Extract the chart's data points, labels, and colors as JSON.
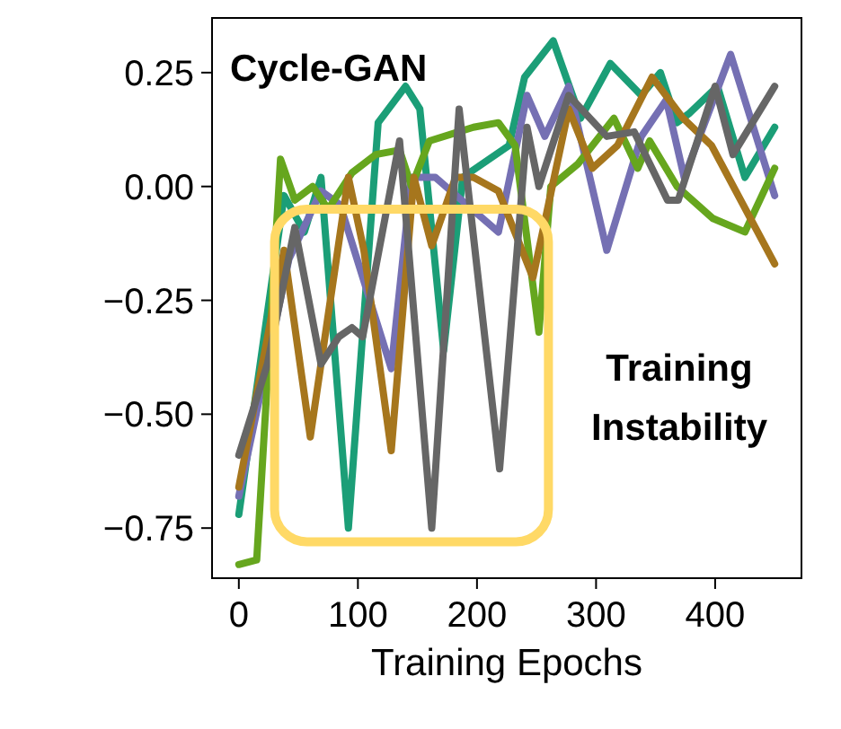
{
  "chart_data": {
    "type": "line",
    "title": "Cycle-GAN",
    "xlabel": "Training Epochs",
    "annotations": [
      "Training Instability"
    ],
    "xlim": [
      -22.5,
      472.5
    ],
    "ylim": [
      -0.86,
      0.37
    ],
    "xticks": [
      0,
      100,
      200,
      300,
      400
    ],
    "yticks": [
      {
        "value": 0.25,
        "label": "0.25"
      },
      {
        "value": 0,
        "label": "0.00"
      },
      {
        "value": -0.25,
        "label": "−0.25"
      },
      {
        "value": -0.5,
        "label": "−0.50"
      },
      {
        "value": -0.75,
        "label": "−0.75"
      }
    ],
    "grid": false,
    "marker": "none",
    "line_style": "solid",
    "series": [
      {
        "color": "#1b9e77",
        "x": [
          0,
          38,
          55,
          69,
          92,
          117,
          140,
          152,
          172,
          188,
          227,
          240,
          264,
          287,
          312,
          338,
          354,
          368,
          378,
          402,
          425,
          450
        ],
        "values": [
          -0.72,
          -0.02,
          -0.1,
          0.02,
          -0.75,
          0.14,
          0.22,
          0.17,
          -0.36,
          0.02,
          0.09,
          0.24,
          0.32,
          0.15,
          0.27,
          0.2,
          0.25,
          0.14,
          0.16,
          0.22,
          0.02,
          0.13
        ]
      },
      {
        "color": "#7570b3",
        "x": [
          0,
          42,
          69,
          85,
          128,
          145,
          165,
          218,
          242,
          257,
          277,
          309,
          338,
          359,
          374,
          413,
          450
        ],
        "values": [
          -0.68,
          -0.16,
          -0.01,
          -0.04,
          -0.4,
          0.02,
          0.02,
          -0.1,
          0.2,
          0.11,
          0.22,
          -0.14,
          0.11,
          0.19,
          0.02,
          0.29,
          -0.02
        ]
      },
      {
        "color": "#66a61e",
        "x": [
          0,
          15,
          35,
          47,
          62,
          75,
          95,
          115,
          135,
          145,
          160,
          197,
          218,
          232,
          252,
          262,
          285,
          315,
          335,
          345,
          368,
          398,
          425,
          450
        ],
        "values": [
          -0.83,
          -0.82,
          0.06,
          -0.03,
          0.0,
          -0.05,
          0.03,
          0.07,
          0.08,
          0.0,
          0.1,
          0.13,
          0.14,
          0.09,
          -0.32,
          0.0,
          0.05,
          0.15,
          0.04,
          0.1,
          0.0,
          -0.07,
          -0.1,
          0.04
        ]
      },
      {
        "color": "#a6761d",
        "x": [
          0,
          38,
          60,
          92,
          105,
          128,
          147,
          162,
          182,
          197,
          218,
          247,
          277,
          297,
          318,
          347,
          373,
          397,
          450
        ],
        "values": [
          -0.66,
          -0.14,
          -0.55,
          0.02,
          -0.14,
          -0.58,
          0.02,
          -0.13,
          0.02,
          0.02,
          -0.01,
          -0.2,
          0.17,
          0.04,
          0.09,
          0.24,
          0.15,
          0.09,
          -0.17
        ]
      },
      {
        "color": "#666666",
        "x": [
          0,
          24,
          47,
          69,
          84,
          95,
          104,
          135,
          162,
          185,
          219,
          242,
          252,
          277,
          309,
          332,
          360,
          369,
          400,
          415,
          450
        ],
        "values": [
          -0.59,
          -0.39,
          -0.09,
          -0.39,
          -0.33,
          -0.31,
          -0.33,
          0.1,
          -0.75,
          0.17,
          -0.62,
          0.13,
          0.0,
          0.2,
          0.11,
          0.12,
          -0.03,
          -0.03,
          0.22,
          0.07,
          0.22
        ]
      }
    ]
  }
}
